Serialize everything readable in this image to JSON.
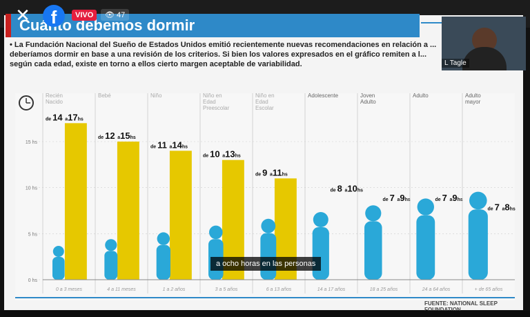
{
  "player": {
    "close_icon": "close-icon",
    "facebook_icon": "facebook-icon",
    "live_label": "VIVO",
    "viewers": "47",
    "viewer_icon": "eye-icon",
    "caption": "a ocho horas en las personas",
    "camera_name": "L Tagle"
  },
  "slide": {
    "title": "Cuánto debemos dormir",
    "intro": "La Fundación Nacional del Sueño de Estados Unidos emitió recientemente nuevas recomendaciones en relación a ... deberíamos dormir en base a una revisión de los criterios. Si bien los valores expresados en el gráfico remiten a l... según cada edad, existe en torno a ellos cierto margen aceptable de variabilidad.",
    "source": "FUENTE: NATIONAL SLEEP FOUNDATION",
    "colors": {
      "band": "#2e89c8",
      "accent": "#c8201f",
      "bar": "#e6c800",
      "silhouette": "#2aa8d8"
    }
  },
  "chart_data": {
    "type": "bar",
    "title": "",
    "ylabel": "",
    "ylim": [
      0,
      18
    ],
    "ytick_labels": [
      "0 hs",
      "5 hs",
      "10 hs",
      "15 hs"
    ],
    "yticks": [
      0,
      5,
      10,
      15
    ],
    "clock_icon": "clock-icon",
    "categories": [
      {
        "group": "Recién Nacido",
        "age": "0 a 3 meses",
        "label_de": "de",
        "min": 14,
        "label_a": "a",
        "max": 17,
        "unit": "hs",
        "bar": true
      },
      {
        "group": "Bebé",
        "age": "4 a 11 meses",
        "label_de": "de",
        "min": 12,
        "label_a": "a",
        "max": 15,
        "unit": "hs",
        "bar": true
      },
      {
        "group": "Niño",
        "age": "1 a 2 años",
        "label_de": "de",
        "min": 11,
        "label_a": "a",
        "max": 14,
        "unit": "hs",
        "bar": true
      },
      {
        "group": "Niño en Edad Preescolar",
        "age": "3 a 5 años",
        "label_de": "de",
        "min": 10,
        "label_a": "a",
        "max": 13,
        "unit": "hs",
        "bar": true
      },
      {
        "group": "Niño en Edad Escolar",
        "age": "6 a 13 años",
        "label_de": "de",
        "min": 9,
        "label_a": "a",
        "max": 11,
        "unit": "hs",
        "bar": true
      },
      {
        "group": "Adolescente",
        "age": "14 a 17 años",
        "label_de": "de",
        "min": 8,
        "label_a": "a",
        "max": 10,
        "unit": "hs",
        "bar": false
      },
      {
        "group": "Joven Adulto",
        "age": "18 a 25 años",
        "label_de": "de",
        "min": 7,
        "label_a": "a",
        "max": 9,
        "unit": "hs",
        "bar": false
      },
      {
        "group": "Adulto",
        "age": "24 a 64 años",
        "label_de": "de",
        "min": 7,
        "label_a": "a",
        "max": 9,
        "unit": "hs",
        "bar": false
      },
      {
        "group": "Adulto mayor",
        "age": "+ de 65 años",
        "label_de": "de",
        "min": 7,
        "label_a": "a",
        "max": 8,
        "unit": "hs",
        "bar": false
      }
    ]
  }
}
